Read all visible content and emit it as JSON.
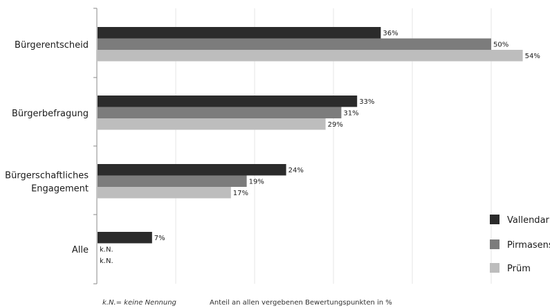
{
  "chart_data": {
    "type": "bar",
    "orientation": "horizontal",
    "categories": [
      [
        "Bürgerentscheid"
      ],
      [
        "Bürgerbefragung"
      ],
      [
        "Bürgerschaftliches",
        "Engagement"
      ],
      [
        "Alle"
      ]
    ],
    "series": [
      {
        "name": "Vallendar",
        "color": "#2b2b2b",
        "values": [
          36,
          33,
          24,
          7
        ],
        "labels": [
          "36%",
          "33%",
          "24%",
          "7%"
        ]
      },
      {
        "name": "Pirmasens",
        "color": "#7c7c7c",
        "values": [
          50,
          31,
          19,
          null
        ],
        "labels": [
          "50%",
          "31%",
          "19%",
          "k.N."
        ]
      },
      {
        "name": "Prüm",
        "color": "#bdbdbd",
        "values": [
          54,
          29,
          17,
          null
        ],
        "labels": [
          "54%",
          "29%",
          "17%",
          "k.N."
        ]
      }
    ],
    "xlim": [
      0,
      60
    ],
    "grid": true,
    "legend_position": "bottom-right",
    "footnote": "k.N.= keine Nennung",
    "xlabel": "Anteil an allen vergebenen Bewertungspunkten in %"
  }
}
